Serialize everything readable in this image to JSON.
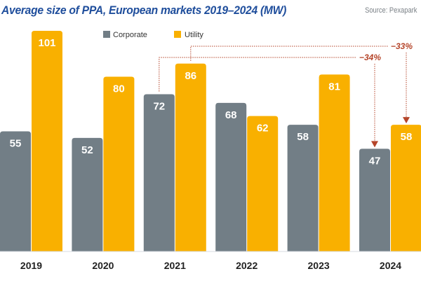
{
  "chart_data": {
    "type": "bar",
    "title": "Average size of PPA, European markets 2019–2024 (MW)",
    "source": "Source: Pexapark",
    "categories": [
      "2019",
      "2020",
      "2021",
      "2022",
      "2023",
      "2024"
    ],
    "series": [
      {
        "name": "Corporate",
        "color": "#727e86",
        "values": [
          55,
          52,
          72,
          68,
          58,
          47
        ]
      },
      {
        "name": "Utility",
        "color": "#f9b000",
        "values": [
          101,
          80,
          86,
          62,
          81,
          58
        ]
      }
    ],
    "xlabel": "",
    "ylabel": "",
    "ylim": [
      0,
      101
    ],
    "grid": false,
    "legend": "top-center",
    "annotations": [
      {
        "label": "−34%",
        "from": {
          "category": "2021",
          "series": "Corporate"
        },
        "to": {
          "category": "2024",
          "series": "Corporate"
        },
        "color": "#b5452a"
      },
      {
        "label": "−33%",
        "from": {
          "category": "2021",
          "series": "Utility"
        },
        "to": {
          "category": "2024",
          "series": "Utility"
        },
        "color": "#b5452a"
      }
    ]
  }
}
